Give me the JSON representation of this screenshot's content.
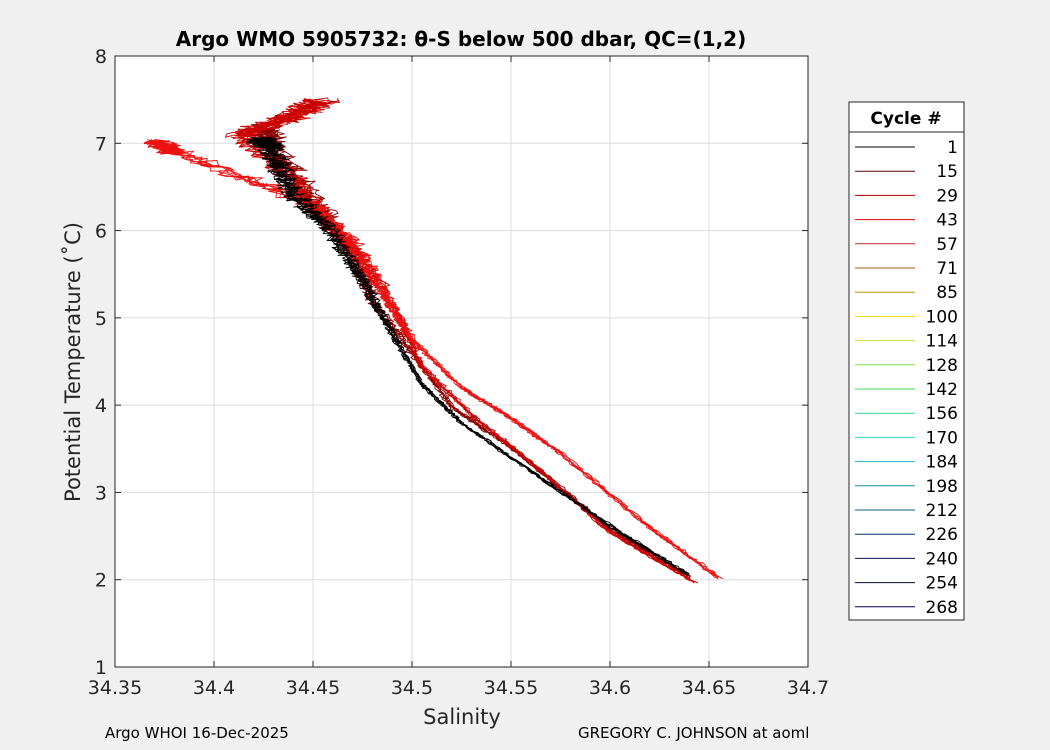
{
  "chart_data": {
    "type": "line",
    "title": "Argo WMO 5905732: θ-S below 500 dbar,  QC=(1,2)",
    "xlabel": "Salinity",
    "ylabel": "Potential Temperature (˚C)",
    "xlim": [
      34.35,
      34.7
    ],
    "ylim": [
      1,
      8
    ],
    "xticks": [
      "34.35",
      "34.4",
      "34.45",
      "34.5",
      "34.55",
      "34.6",
      "34.65",
      "34.7"
    ],
    "yticks": [
      "1",
      "2",
      "3",
      "4",
      "5",
      "6",
      "7",
      "8"
    ],
    "grid": true,
    "legend": {
      "title": "Cycle #",
      "placement": "right-outside",
      "entries": [
        "1",
        "15",
        "29",
        "43",
        "57",
        "71",
        "85",
        "100",
        "114",
        "128",
        "142",
        "156",
        "170",
        "184",
        "198",
        "212",
        "226",
        "240",
        "254",
        "268"
      ],
      "colors": [
        "#000000",
        "#5a0000",
        "#b00000",
        "#d40000",
        "#c02a2a",
        "#a86010",
        "#b89a00",
        "#e8d800",
        "#c8dc30",
        "#80dc50",
        "#40d850",
        "#30d890",
        "#30d8c8",
        "#20b8c0",
        "#1890a0",
        "#106080",
        "#082c70",
        "#041860",
        "#020a30",
        "#000050"
      ]
    },
    "series": [
      {
        "color": "#8b0000",
        "points": [
          [
            34.64,
            2.03
          ],
          [
            34.6,
            2.58
          ],
          [
            34.55,
            3.52
          ],
          [
            34.52,
            3.98
          ],
          [
            34.5,
            4.6
          ],
          [
            34.48,
            5.2
          ],
          [
            34.47,
            5.75
          ],
          [
            34.455,
            6.2
          ],
          [
            34.43,
            6.95
          ],
          [
            34.425,
            7.2
          ]
        ]
      },
      {
        "color": "#cc0000",
        "points": [
          [
            34.643,
            1.97
          ],
          [
            34.6,
            2.55
          ],
          [
            34.56,
            3.35
          ],
          [
            34.53,
            3.9
          ],
          [
            34.505,
            4.45
          ],
          [
            34.495,
            4.95
          ],
          [
            34.48,
            5.55
          ],
          [
            34.46,
            6.05
          ],
          [
            34.44,
            6.6
          ],
          [
            34.415,
            7.1
          ],
          [
            34.44,
            7.3
          ],
          [
            34.455,
            7.5
          ]
        ]
      },
      {
        "color": "#ee1111",
        "points": [
          [
            34.655,
            2.02
          ],
          [
            34.62,
            2.6
          ],
          [
            34.575,
            3.45
          ],
          [
            34.55,
            3.85
          ],
          [
            34.525,
            4.2
          ],
          [
            34.5,
            4.75
          ],
          [
            34.485,
            5.3
          ],
          [
            34.47,
            5.85
          ],
          [
            34.45,
            6.3
          ],
          [
            34.38,
            6.9
          ],
          [
            34.37,
            7.02
          ]
        ]
      },
      {
        "color": "#000000",
        "points": [
          [
            34.64,
            2.06
          ],
          [
            34.605,
            2.55
          ],
          [
            34.56,
            3.25
          ],
          [
            34.525,
            3.8
          ],
          [
            34.505,
            4.25
          ],
          [
            34.49,
            4.85
          ],
          [
            34.475,
            5.45
          ],
          [
            34.46,
            6.0
          ],
          [
            34.44,
            6.45
          ],
          [
            34.43,
            6.95
          ],
          [
            34.425,
            7.05
          ]
        ]
      }
    ]
  },
  "footer": {
    "left": "Argo WHOI 16-Dec-2025",
    "right": "GREGORY C. JOHNSON at aoml"
  }
}
